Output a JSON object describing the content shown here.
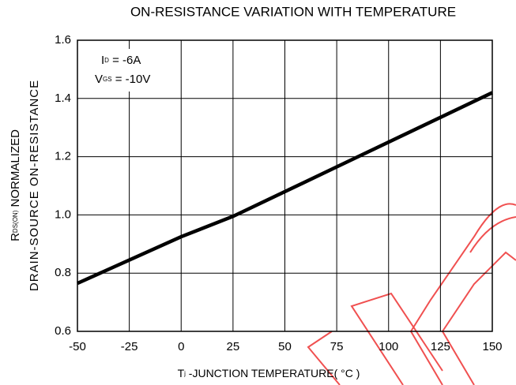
{
  "chart_data": {
    "type": "line",
    "title": "ON-RESISTANCE VARIATION WITH TEMPERATURE",
    "x_label": {
      "main": "T",
      "sub": "j",
      "rest": " -JUNCTION TEMPERATURE( °C )"
    },
    "y_label": {
      "line1": {
        "main": "R",
        "sub": "DS(ON)",
        "rest": " NORMALIZED"
      },
      "line2": "DRAIN-SOURCE ON-RESISTANCE"
    },
    "annotations": [
      {
        "main": "I",
        "sub": "D",
        "rest": " = -6A"
      },
      {
        "main": "V",
        "sub": "GS",
        "rest": " = -10V"
      }
    ],
    "x": [
      -50,
      0,
      25,
      75,
      150
    ],
    "values": [
      0.765,
      0.925,
      0.995,
      1.165,
      1.42
    ],
    "color": "#000000",
    "xlim": [
      -50,
      150
    ],
    "ylim": [
      0.6,
      1.6
    ],
    "xticks": [
      -50,
      -25,
      0,
      25,
      50,
      75,
      100,
      125,
      150
    ],
    "yticks": [
      0.6,
      0.8,
      {
        "value": 1,
        "label": "1.0"
      },
      1.2,
      1.4,
      1.6
    ],
    "grid": true
  }
}
